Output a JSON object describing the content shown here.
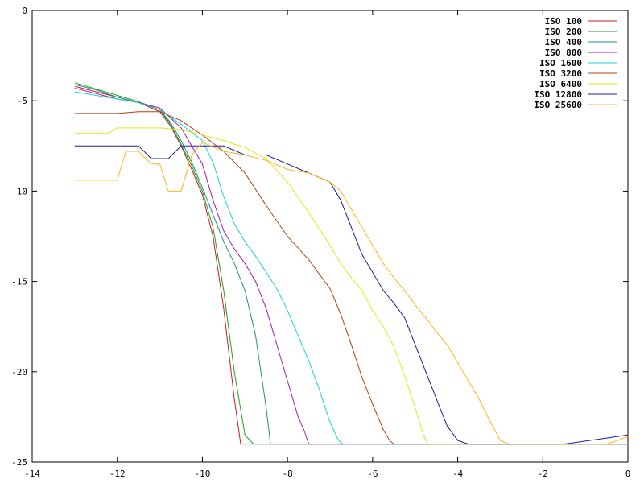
{
  "chart_data": {
    "type": "line",
    "title": "",
    "xlabel": "",
    "ylabel": "",
    "xlim": [
      -14,
      0
    ],
    "ylim": [
      -25,
      0
    ],
    "xticks": [
      -14,
      -12,
      -10,
      -8,
      -6,
      -4,
      -2,
      0
    ],
    "yticks": [
      0,
      -5,
      -10,
      -15,
      -20,
      -25
    ],
    "grid": false,
    "legend_position": "top-right",
    "series": [
      {
        "name": "ISO 100",
        "color": "#cc1a1a",
        "x": [
          -13,
          -12.5,
          -12,
          -11.5,
          -11,
          -10.75,
          -10.5,
          -10.25,
          -10,
          -9.75,
          -9.5,
          -9.25,
          -9.1,
          -9.0,
          -8.5,
          0
        ],
        "y": [
          -4.2,
          -4.5,
          -4.8,
          -5.1,
          -5.6,
          -6.4,
          -7.5,
          -8.8,
          -10.2,
          -12.5,
          -16.5,
          -21.5,
          -24,
          -24,
          -24,
          -24
        ]
      },
      {
        "name": "ISO 200",
        "color": "#1aa01a",
        "x": [
          -13,
          -12.5,
          -12,
          -11.5,
          -11,
          -10.75,
          -10.5,
          -10.25,
          -10,
          -9.75,
          -9.5,
          -9.25,
          -9.0,
          -8.8,
          -8.5,
          0
        ],
        "y": [
          -4.0,
          -4.35,
          -4.7,
          -5.05,
          -5.5,
          -6.3,
          -7.4,
          -8.6,
          -10.0,
          -12.0,
          -15.5,
          -20.0,
          -23.5,
          -24,
          -24,
          -24
        ]
      },
      {
        "name": "ISO 400",
        "color": "#1a9090",
        "x": [
          -13,
          -12.5,
          -12,
          -11.5,
          -11,
          -10.75,
          -10.5,
          -10.25,
          -10,
          -9.75,
          -9.5,
          -9.25,
          -9.0,
          -8.75,
          -8.5,
          -8.4,
          0
        ],
        "y": [
          -4.1,
          -4.4,
          -4.8,
          -5.1,
          -5.5,
          -6.2,
          -7.2,
          -8.4,
          -9.8,
          -11.3,
          -12.8,
          -14.0,
          -15.5,
          -18.0,
          -22.0,
          -24,
          -24
        ]
      },
      {
        "name": "ISO 800",
        "color": "#aa1ab4",
        "x": [
          -13,
          -12.5,
          -12,
          -11.5,
          -11,
          -10.5,
          -10,
          -9.75,
          -9.5,
          -9.25,
          -9,
          -8.75,
          -8.5,
          -8.25,
          -8,
          -7.75,
          -7.6,
          -7.5,
          -0.5,
          0
        ],
        "y": [
          -4.3,
          -4.6,
          -4.9,
          -5.1,
          -5.4,
          -6.5,
          -8.5,
          -10.5,
          -12.2,
          -13.2,
          -14.0,
          -15.0,
          -16.5,
          -18.5,
          -20.5,
          -22.5,
          -23.3,
          -24,
          -24,
          -24
        ]
      },
      {
        "name": "ISO 1600",
        "color": "#19d2d2",
        "x": [
          -13,
          -12.5,
          -12,
          -11.5,
          -11,
          -10.5,
          -10,
          -9.75,
          -9.5,
          -9.25,
          -9,
          -8.75,
          -8.5,
          -8.25,
          -8,
          -7.75,
          -7.5,
          -7.25,
          -7,
          -6.8,
          -6.7,
          0
        ],
        "y": [
          -4.5,
          -4.7,
          -4.9,
          -5.1,
          -5.5,
          -6.3,
          -7.2,
          -8.4,
          -10.3,
          -11.8,
          -12.8,
          -13.6,
          -14.5,
          -15.4,
          -16.6,
          -18.0,
          -19.4,
          -21.0,
          -22.8,
          -23.8,
          -24,
          -24
        ]
      },
      {
        "name": "ISO 3200",
        "color": "#b4400a",
        "x": [
          -13,
          -12,
          -11.5,
          -11,
          -10.5,
          -10,
          -9.5,
          -9,
          -8.5,
          -8,
          -7.5,
          -7,
          -6.75,
          -6.5,
          -6.25,
          -6,
          -5.75,
          -5.6,
          -5.5,
          0
        ],
        "y": [
          -5.7,
          -5.7,
          -5.6,
          -5.6,
          -6.1,
          -6.9,
          -7.8,
          -9.0,
          -10.8,
          -12.5,
          -13.8,
          -15.4,
          -16.8,
          -18.5,
          -20.3,
          -21.8,
          -23.2,
          -23.8,
          -24,
          -24
        ]
      },
      {
        "name": "ISO 6400",
        "color": "#e6e619",
        "x": [
          -13,
          -12.2,
          -12,
          -11.5,
          -11,
          -10.5,
          -10,
          -9.5,
          -9,
          -8.5,
          -8,
          -7.5,
          -7,
          -6.75,
          -6.5,
          -6.25,
          -6,
          -5.75,
          -5.5,
          -5.25,
          -5,
          -4.8,
          -4.7,
          0
        ],
        "y": [
          -6.8,
          -6.8,
          -6.5,
          -6.5,
          -6.5,
          -6.6,
          -6.9,
          -7.2,
          -7.6,
          -8.2,
          -9.5,
          -11.2,
          -13.0,
          -14.0,
          -14.8,
          -15.5,
          -16.6,
          -17.5,
          -18.6,
          -20.2,
          -22.0,
          -23.5,
          -24,
          -24
        ]
      },
      {
        "name": "ISO 12800",
        "color": "#1a1aa0",
        "x": [
          -13,
          -12.2,
          -11.8,
          -11.5,
          -11.2,
          -10.8,
          -10.5,
          -10,
          -9.5,
          -9,
          -8.5,
          -8,
          -7.5,
          -7,
          -6.75,
          -6.5,
          -6.25,
          -6,
          -5.75,
          -5.5,
          -5.25,
          -5,
          -4.75,
          -4.5,
          -4.25,
          -4,
          -3.75,
          -3.5,
          -2,
          -1.5,
          0
        ],
        "y": [
          -7.5,
          -7.5,
          -7.5,
          -7.5,
          -8.2,
          -8.2,
          -7.5,
          -7.5,
          -7.5,
          -8.0,
          -8.0,
          -8.5,
          -9.0,
          -9.5,
          -10.5,
          -12.0,
          -13.5,
          -14.5,
          -15.5,
          -16.2,
          -17.0,
          -18.5,
          -20.0,
          -21.5,
          -23.0,
          -23.8,
          -24,
          -24,
          -24,
          -24,
          -23.5
        ]
      },
      {
        "name": "ISO 25600",
        "color": "#ffb41e",
        "x": [
          -13,
          -12.5,
          -12,
          -11.8,
          -11.5,
          -11.2,
          -11,
          -10.8,
          -10.5,
          -10.25,
          -10,
          -9.5,
          -9,
          -8.5,
          -8,
          -7.5,
          -7,
          -6.75,
          -6.5,
          -6.25,
          -6,
          -5.75,
          -5.5,
          -5.25,
          -5,
          -4.75,
          -4.5,
          -4.25,
          -4,
          -3.75,
          -3.5,
          -3.25,
          -3.0,
          -2.8,
          -2.5,
          -0.5,
          0
        ],
        "y": [
          -9.4,
          -9.4,
          -9.4,
          -7.8,
          -7.8,
          -8.5,
          -8.5,
          -10.0,
          -10.0,
          -8.0,
          -7.3,
          -7.8,
          -8.0,
          -8.3,
          -8.8,
          -9.0,
          -9.5,
          -10.0,
          -11.0,
          -12.0,
          -13.0,
          -14.0,
          -14.8,
          -15.5,
          -16.3,
          -17.0,
          -17.8,
          -18.5,
          -19.5,
          -20.5,
          -21.5,
          -22.7,
          -23.8,
          -24,
          -24,
          -24,
          -23.6
        ]
      }
    ]
  }
}
